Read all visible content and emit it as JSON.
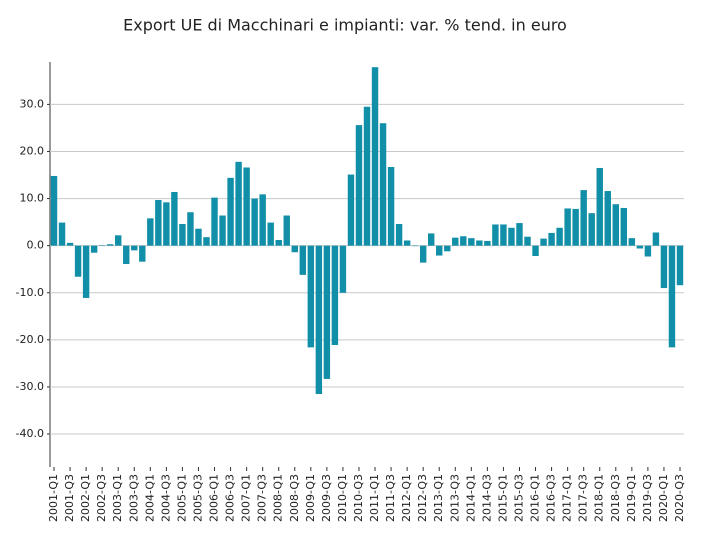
{
  "chart_data": {
    "type": "bar",
    "title": "Export UE di Macchinari e impianti: var. % tend. in euro",
    "categories": [
      "2001-Q1",
      null,
      "2001-Q3",
      null,
      "2002-Q1",
      null,
      "2002-Q3",
      null,
      "2003-Q1",
      null,
      "2003-Q3",
      null,
      "2004-Q1",
      null,
      "2004-Q3",
      null,
      "2005-Q1",
      null,
      "2005-Q3",
      null,
      "2006-Q1",
      null,
      "2006-Q3",
      null,
      "2007-Q1",
      null,
      "2007-Q3",
      null,
      "2008-Q1",
      null,
      "2008-Q3",
      null,
      "2009-Q1",
      null,
      "2009-Q3",
      null,
      "2010-Q1",
      null,
      "2010-Q3",
      null,
      "2011-Q1",
      null,
      "2011-Q3",
      null,
      "2012-Q1",
      null,
      "2012-Q3",
      null,
      "2013-Q1",
      null,
      "2013-Q3",
      null,
      "2014-Q1",
      null,
      "2014-Q3",
      null,
      "2015-Q1",
      null,
      "2015-Q3",
      null,
      "2016-Q1",
      null,
      "2016-Q3",
      null,
      "2017-Q1",
      null,
      "2017-Q3",
      null,
      "2018-Q1",
      null,
      "2018-Q3",
      null,
      "2019-Q1",
      null,
      "2019-Q3",
      null,
      "2020-Q1",
      null,
      "2020-Q3"
    ],
    "values": [
      14.8,
      4.9,
      0.6,
      -6.6,
      -11.1,
      -1.5,
      0.1,
      0.3,
      2.2,
      -3.9,
      -1.0,
      -3.4,
      5.8,
      9.7,
      9.2,
      11.4,
      4.6,
      7.1,
      3.6,
      1.8,
      10.2,
      6.4,
      14.4,
      17.8,
      16.6,
      10.0,
      10.9,
      4.9,
      1.2,
      6.4,
      -1.4,
      -6.2,
      -21.6,
      -31.5,
      -28.3,
      -21.1,
      -10.0,
      15.1,
      25.6,
      29.5,
      37.9,
      26.0,
      16.7,
      4.6,
      1.1,
      -0.1,
      -3.6,
      2.6,
      -2.1,
      -1.2,
      1.7,
      2.0,
      1.6,
      1.1,
      1.0,
      4.5,
      4.5,
      3.8,
      4.8,
      1.9,
      -2.2,
      1.5,
      2.7,
      3.8,
      7.9,
      7.8,
      11.8,
      6.9,
      16.5,
      11.6,
      8.8,
      8.0,
      1.6,
      -0.6,
      -2.3,
      2.8,
      -9.0,
      -21.6,
      -8.4
    ],
    "color": "#128fa8",
    "ylim": [
      -47,
      39
    ],
    "yticks": [
      {
        "value": -40,
        "label": "-40.0"
      },
      {
        "value": -30,
        "label": "-30.0"
      },
      {
        "value": -20,
        "label": "-20.0"
      },
      {
        "value": -10,
        "label": "-10.0"
      },
      {
        "value": 0,
        "label": "0.0"
      },
      {
        "value": 10,
        "label": "10.0"
      },
      {
        "value": 20,
        "label": "20.0"
      },
      {
        "value": 30,
        "label": "30.0"
      }
    ],
    "grid": true
  }
}
